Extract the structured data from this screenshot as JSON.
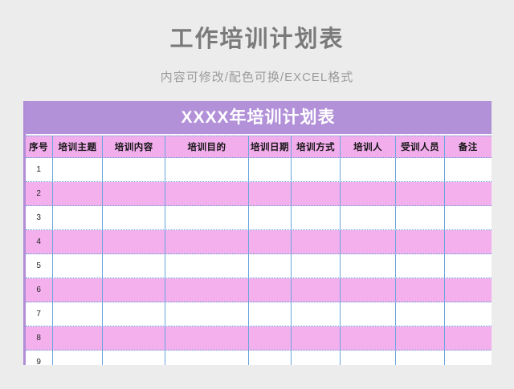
{
  "page": {
    "title": "工作培训计划表",
    "subtitle": "内容可修改/配色可换/EXCEL格式"
  },
  "table": {
    "banner": "XXXX年培训计划表",
    "headers": [
      "序号",
      "培训主题",
      "培训内容",
      "培训目的",
      "培训日期",
      "培训方式",
      "培训人",
      "受训人员",
      "备注"
    ],
    "rows": [
      {
        "num": "1",
        "cells": [
          "",
          "",
          "",
          "",
          "",
          "",
          "",
          ""
        ]
      },
      {
        "num": "2",
        "cells": [
          "",
          "",
          "",
          "",
          "",
          "",
          "",
          ""
        ]
      },
      {
        "num": "3",
        "cells": [
          "",
          "",
          "",
          "",
          "",
          "",
          "",
          ""
        ]
      },
      {
        "num": "4",
        "cells": [
          "",
          "",
          "",
          "",
          "",
          "",
          "",
          ""
        ]
      },
      {
        "num": "5",
        "cells": [
          "",
          "",
          "",
          "",
          "",
          "",
          "",
          ""
        ]
      },
      {
        "num": "6",
        "cells": [
          "",
          "",
          "",
          "",
          "",
          "",
          "",
          ""
        ]
      },
      {
        "num": "7",
        "cells": [
          "",
          "",
          "",
          "",
          "",
          "",
          "",
          ""
        ]
      },
      {
        "num": "8",
        "cells": [
          "",
          "",
          "",
          "",
          "",
          "",
          "",
          ""
        ]
      },
      {
        "num": "9",
        "cells": [
          "",
          "",
          "",
          "",
          "",
          "",
          "",
          ""
        ]
      }
    ]
  },
  "colors": {
    "page_background": "#ececec",
    "banner_purple": "#b291d9",
    "left_border_purple": "#b18dd8",
    "header_pink": "#f2aeec",
    "row_pink": "#f3b0ed",
    "grid_blue": "#6aa5de",
    "dotted_grid_blue": "#5b9fd8",
    "title_gray": "#7a7a7a",
    "subtitle_gray": "#9b9b9b"
  }
}
